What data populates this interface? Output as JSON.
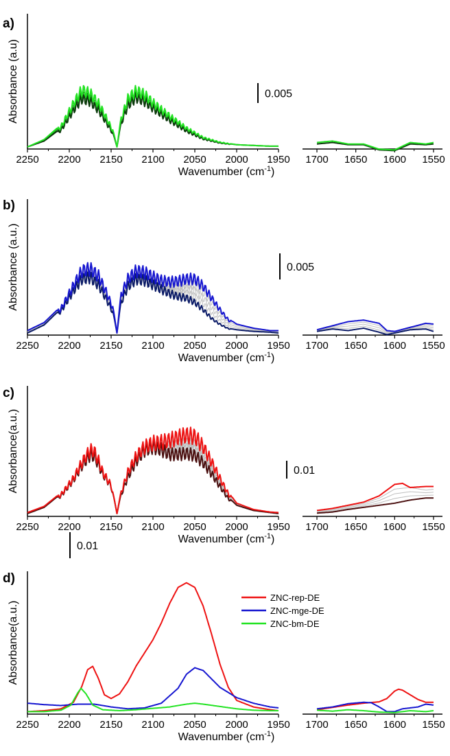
{
  "figure": {
    "panels": [
      {
        "letter": "a)",
        "ylabel": "Absorbance (a.u)",
        "xlabel": "Wavenumber (cm",
        "xlabel_sup": "-1",
        "xlabel_end": ")",
        "scale_label": "0.005"
      },
      {
        "letter": "b)",
        "ylabel": "Absorbance (a.u.)",
        "xlabel": "Wavenumber (cm",
        "xlabel_sup": "-1",
        "xlabel_end": ")",
        "scale_label": "0.005"
      },
      {
        "letter": "c)",
        "ylabel": "Absorbance(a.u.)",
        "xlabel": "Wavenumber (cm",
        "xlabel_sup": "-1",
        "xlabel_end": ")",
        "scale_label": "0.01"
      },
      {
        "letter": "d)",
        "ylabel": "Absorbance(a.u.)",
        "xlabel": "Wavenumber (cm",
        "xlabel_sup": "-1",
        "xlabel_end": ")",
        "scale_label": "0.01"
      }
    ],
    "colors": {
      "green": "#22e322",
      "dark_green": "#0c3a0c",
      "blue": "#1515d0",
      "navy": "#0a1a66",
      "red": "#ee1111",
      "maroon": "#4a0f0f",
      "gray": "#bdbdbd"
    }
  },
  "chart_data": [
    {
      "type": "line",
      "panel": "a",
      "title": "",
      "xlabel": "Wavenumber (cm-1)",
      "ylabel": "Absorbance (a.u)",
      "xlim": [
        2250,
        1550
      ],
      "x_break": [
        1950,
        1700
      ],
      "x_ticks_left": [
        2250,
        2200,
        2150,
        2100,
        2050,
        2000,
        1950
      ],
      "x_ticks_right": [
        1700,
        1650,
        1600,
        1550
      ],
      "scale_bar": 0.005,
      "rovibrational_fringes": true,
      "series": [
        {
          "color": "dark_green",
          "x": [
            2250,
            2230,
            2210,
            2195,
            2185,
            2175,
            2165,
            2155,
            2148,
            2143,
            2138,
            2130,
            2120,
            2110,
            2100,
            2080,
            2060,
            2040,
            2020,
            2000,
            1980,
            1960,
            1950
          ],
          "y": [
            0.0,
            0.0008,
            0.0025,
            0.0055,
            0.0072,
            0.0068,
            0.0055,
            0.0035,
            0.002,
            0.0,
            0.0035,
            0.0062,
            0.0074,
            0.0068,
            0.0058,
            0.004,
            0.0024,
            0.0012,
            0.0006,
            0.0003,
            0.0002,
            0.0001,
            0.0001
          ],
          "x2": [
            1700,
            1680,
            1660,
            1640,
            1620,
            1600,
            1580,
            1560,
            1550
          ],
          "y2": [
            0.0004,
            0.0006,
            0.0003,
            0.0003,
            -0.0004,
            -0.0005,
            0.0004,
            0.0003,
            0.0004
          ]
        },
        {
          "color": "green",
          "x": [
            2250,
            2230,
            2210,
            2195,
            2185,
            2175,
            2165,
            2155,
            2148,
            2143,
            2138,
            2130,
            2120,
            2110,
            2100,
            2080,
            2060,
            2040,
            2020,
            2000,
            1980,
            1960,
            1950
          ],
          "y": [
            0.0,
            0.001,
            0.003,
            0.0065,
            0.0085,
            0.008,
            0.0065,
            0.0042,
            0.0024,
            0.0,
            0.0042,
            0.0072,
            0.0084,
            0.0078,
            0.0066,
            0.0046,
            0.0028,
            0.0014,
            0.0007,
            0.0003,
            0.0002,
            0.0001,
            0.0001
          ],
          "x2": [
            1700,
            1680,
            1660,
            1640,
            1620,
            1600,
            1580,
            1560,
            1550
          ],
          "y2": [
            0.0006,
            0.0008,
            0.0004,
            0.0004,
            -0.0003,
            -0.0004,
            0.0006,
            0.0004,
            0.0006
          ]
        }
      ]
    },
    {
      "type": "line",
      "panel": "b",
      "title": "",
      "xlabel": "Wavenumber (cm-1)",
      "ylabel": "Absorbance (a.u.)",
      "xlim": [
        2250,
        1550
      ],
      "x_break": [
        1950,
        1700
      ],
      "x_ticks_left": [
        2250,
        2200,
        2150,
        2100,
        2050,
        2000,
        1950
      ],
      "x_ticks_right": [
        1700,
        1650,
        1600,
        1550
      ],
      "scale_bar": 0.005,
      "rovibrational_fringes": true,
      "series": [
        {
          "color": "navy",
          "x": [
            2250,
            2230,
            2210,
            2195,
            2185,
            2175,
            2165,
            2155,
            2148,
            2143,
            2138,
            2130,
            2120,
            2110,
            2100,
            2090,
            2080,
            2070,
            2060,
            2050,
            2040,
            2030,
            2020,
            2010,
            2000,
            1980,
            1960,
            1950
          ],
          "y": [
            0.0,
            0.001,
            0.003,
            0.0058,
            0.0074,
            0.0076,
            0.0066,
            0.0045,
            0.0028,
            0.0,
            0.0042,
            0.0064,
            0.0074,
            0.0072,
            0.0066,
            0.006,
            0.0054,
            0.005,
            0.0048,
            0.0042,
            0.0032,
            0.002,
            0.0012,
            0.0006,
            0.0004,
            0.0002,
            0.0001,
            0.0
          ],
          "x2": [
            1700,
            1680,
            1660,
            1640,
            1620,
            1610,
            1600,
            1580,
            1560,
            1550
          ],
          "y2": [
            0.0002,
            0.0005,
            0.0003,
            0.0006,
            0.0001,
            -0.0002,
            0.0,
            0.0004,
            0.0005,
            0.0002
          ]
        },
        {
          "color": "blue",
          "x": [
            2250,
            2230,
            2210,
            2195,
            2185,
            2175,
            2165,
            2155,
            2148,
            2143,
            2138,
            2130,
            2120,
            2110,
            2100,
            2090,
            2080,
            2070,
            2060,
            2050,
            2040,
            2030,
            2020,
            2010,
            2000,
            1980,
            1960,
            1950
          ],
          "y": [
            0.0003,
            0.0013,
            0.0033,
            0.0065,
            0.0085,
            0.0088,
            0.0078,
            0.0054,
            0.0034,
            0.0,
            0.0052,
            0.0074,
            0.0085,
            0.0083,
            0.0077,
            0.0072,
            0.007,
            0.0071,
            0.0074,
            0.0074,
            0.0064,
            0.0048,
            0.0032,
            0.0018,
            0.0011,
            0.0006,
            0.0003,
            0.0003
          ],
          "x2": [
            1700,
            1680,
            1660,
            1640,
            1620,
            1610,
            1600,
            1580,
            1560,
            1550
          ],
          "y2": [
            0.0004,
            0.0009,
            0.0014,
            0.0016,
            0.0012,
            0.0003,
            0.0002,
            0.0007,
            0.0012,
            0.0011
          ]
        }
      ]
    },
    {
      "type": "line",
      "panel": "c",
      "title": "",
      "xlabel": "Wavenumber (cm-1)",
      "ylabel": "Absorbance(a.u.)",
      "xlim": [
        2250,
        1550
      ],
      "x_break": [
        1950,
        1700
      ],
      "x_ticks_left": [
        2250,
        2200,
        2150,
        2100,
        2050,
        2000,
        1950
      ],
      "x_ticks_right": [
        1700,
        1650,
        1600,
        1550
      ],
      "scale_bar": 0.01,
      "rovibrational_fringes": true,
      "series": [
        {
          "color": "maroon",
          "x": [
            2250,
            2230,
            2210,
            2195,
            2185,
            2175,
            2170,
            2165,
            2160,
            2155,
            2150,
            2143,
            2138,
            2130,
            2120,
            2110,
            2100,
            2090,
            2080,
            2070,
            2060,
            2050,
            2040,
            2030,
            2020,
            2010,
            2000,
            1980,
            1960,
            1950
          ],
          "y": [
            0.0,
            0.0012,
            0.0038,
            0.0072,
            0.0102,
            0.0125,
            0.0122,
            0.0104,
            0.0084,
            0.0072,
            0.0058,
            0.0,
            0.004,
            0.0078,
            0.0112,
            0.0135,
            0.0142,
            0.0136,
            0.0126,
            0.0126,
            0.0128,
            0.0124,
            0.0108,
            0.0085,
            0.0058,
            0.0032,
            0.0016,
            0.0006,
            0.0002,
            0.0
          ],
          "x2": [
            1700,
            1680,
            1660,
            1640,
            1620,
            1600,
            1580,
            1560,
            1550
          ],
          "y2": [
            0.0001,
            0.0003,
            0.0008,
            0.0012,
            0.0016,
            0.002,
            0.0026,
            0.003,
            0.003
          ]
        },
        {
          "color": "red",
          "x": [
            2250,
            2230,
            2210,
            2195,
            2185,
            2175,
            2170,
            2165,
            2160,
            2155,
            2150,
            2143,
            2138,
            2130,
            2120,
            2110,
            2100,
            2090,
            2080,
            2070,
            2060,
            2050,
            2040,
            2030,
            2020,
            2010,
            2000,
            1980,
            1960,
            1950
          ],
          "y": [
            0.0002,
            0.0014,
            0.004,
            0.0075,
            0.0108,
            0.0135,
            0.0132,
            0.0112,
            0.0088,
            0.0074,
            0.006,
            0.0,
            0.0045,
            0.0088,
            0.0122,
            0.0142,
            0.015,
            0.0152,
            0.0156,
            0.0162,
            0.0167,
            0.0164,
            0.0142,
            0.011,
            0.0075,
            0.0042,
            0.002,
            0.0008,
            0.0003,
            0.0002
          ],
          "x2": [
            1700,
            1680,
            1660,
            1640,
            1620,
            1600,
            1590,
            1580,
            1560,
            1550
          ],
          "y2": [
            0.0006,
            0.001,
            0.0016,
            0.0022,
            0.0034,
            0.0056,
            0.0058,
            0.005,
            0.0052,
            0.0052
          ]
        }
      ]
    },
    {
      "type": "line",
      "panel": "d",
      "title": "",
      "xlabel": "Wavenumber (cm-1)",
      "ylabel": "Absorbance(a.u.)",
      "xlim": [
        2250,
        1550
      ],
      "x_break": [
        1950,
        1700
      ],
      "x_ticks_left": [
        2250,
        2200,
        2150,
        2100,
        2050,
        2000,
        1950
      ],
      "x_ticks_right": [
        1700,
        1650,
        1600,
        1550
      ],
      "scale_bar": 0.01,
      "legend": "top-right",
      "series": [
        {
          "name": "ZNC-rep-DE",
          "color": "red",
          "x": [
            2250,
            2230,
            2210,
            2195,
            2185,
            2178,
            2172,
            2165,
            2158,
            2150,
            2140,
            2130,
            2120,
            2110,
            2100,
            2090,
            2080,
            2070,
            2060,
            2050,
            2040,
            2030,
            2020,
            2010,
            2000,
            1980,
            1960,
            1950
          ],
          "y": [
            -0.0002,
            0.0,
            0.0004,
            0.0018,
            0.0052,
            0.0088,
            0.0095,
            0.0068,
            0.0034,
            0.0026,
            0.0036,
            0.0062,
            0.0096,
            0.0124,
            0.0152,
            0.0188,
            0.023,
            0.0264,
            0.0274,
            0.0264,
            0.0224,
            0.0164,
            0.01,
            0.005,
            0.0022,
            0.0008,
            0.0002,
            0.0
          ],
          "x2": [
            1700,
            1680,
            1660,
            1640,
            1620,
            1610,
            1600,
            1595,
            1590,
            1580,
            1570,
            1560,
            1550
          ],
          "y2": [
            0.0002,
            0.0007,
            0.0012,
            0.0016,
            0.0019,
            0.0026,
            0.0042,
            0.0046,
            0.0044,
            0.0034,
            0.0024,
            0.0018,
            0.0018
          ]
        },
        {
          "name": "ZNC-mge-DE",
          "color": "blue",
          "x": [
            2250,
            2230,
            2210,
            2190,
            2170,
            2150,
            2130,
            2110,
            2090,
            2070,
            2060,
            2050,
            2040,
            2030,
            2020,
            2000,
            1980,
            1960,
            1950
          ],
          "y": [
            0.0016,
            0.0013,
            0.0011,
            0.0014,
            0.0014,
            0.0008,
            0.0004,
            0.0006,
            0.0016,
            0.0048,
            0.0078,
            0.0092,
            0.0086,
            0.0068,
            0.005,
            0.0028,
            0.0016,
            0.0008,
            0.0006
          ],
          "x2": [
            1700,
            1680,
            1660,
            1640,
            1630,
            1620,
            1610,
            1600,
            1590,
            1580,
            1570,
            1560,
            1550
          ],
          "y2": [
            0.0004,
            0.0008,
            0.0015,
            0.0018,
            0.0017,
            0.0008,
            -0.0002,
            -0.0002,
            0.0004,
            0.0006,
            0.0008,
            0.0014,
            0.0012
          ]
        },
        {
          "name": "ZNC-bm-DE",
          "color": "green",
          "x": [
            2250,
            2230,
            2210,
            2198,
            2190,
            2186,
            2180,
            2172,
            2160,
            2140,
            2120,
            2100,
            2080,
            2060,
            2050,
            2040,
            2020,
            2000,
            1980,
            1960,
            1950
          ],
          "y": [
            -0.0002,
            -0.0002,
            0.0001,
            0.0012,
            0.0038,
            0.0048,
            0.0036,
            0.0012,
            0.0002,
            0.0,
            0.0002,
            0.0005,
            0.0008,
            0.0014,
            0.0016,
            0.0014,
            0.0009,
            0.0004,
            0.0001,
            0.0,
            0.0
          ],
          "x2": [
            1700,
            1680,
            1660,
            1640,
            1620,
            1600,
            1580,
            1560,
            1550
          ],
          "y2": [
            0.0001,
            -0.0001,
            0.0002,
            0.0,
            -0.0003,
            -0.0004,
            0.0,
            -0.0002,
            0.0
          ]
        }
      ]
    }
  ]
}
